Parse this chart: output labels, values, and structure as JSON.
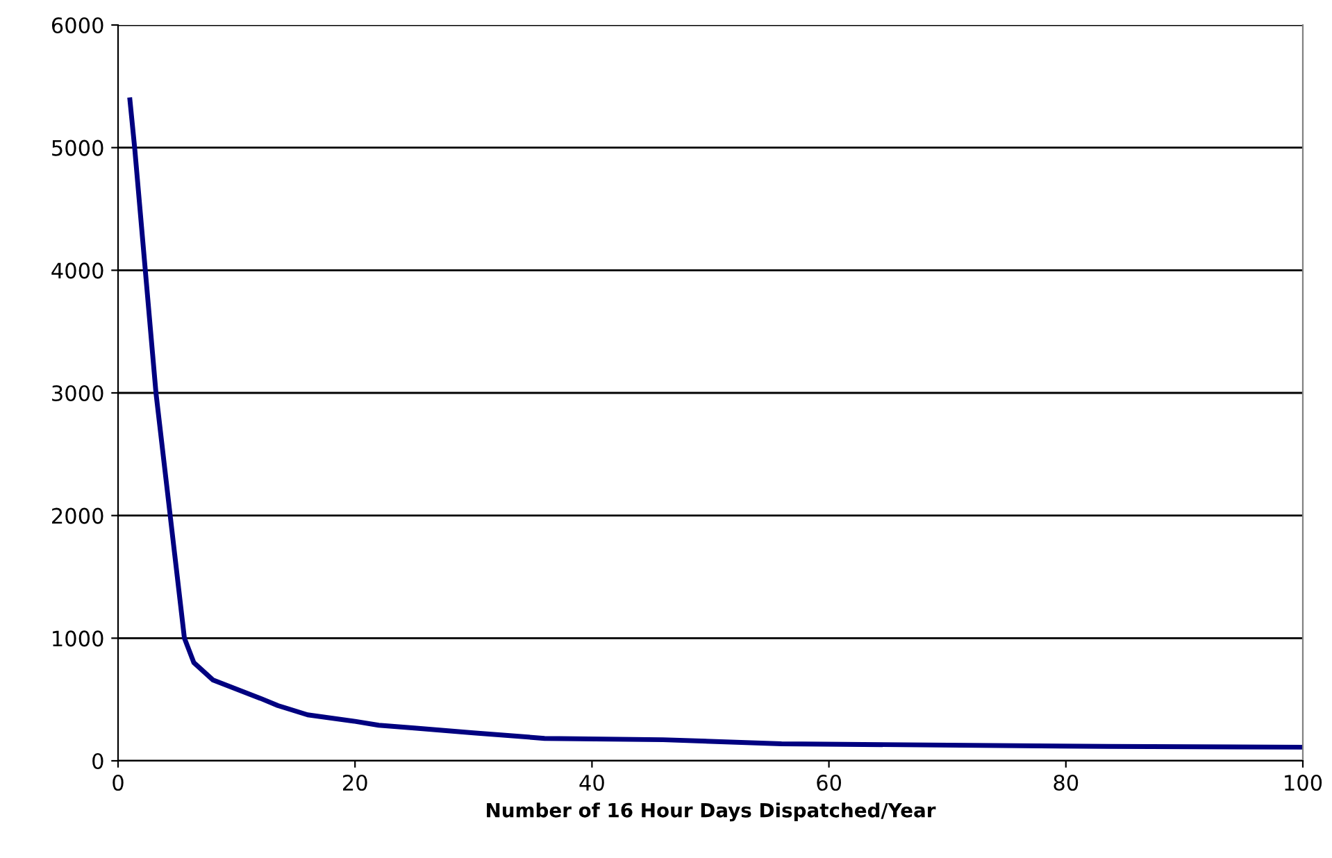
{
  "chart_data": {
    "type": "line",
    "xlabel": "Number of 16 Hour Days Dispatched/Year",
    "x": [
      1,
      1.4,
      2.3,
      3.2,
      4.4,
      5.6,
      6.4,
      8,
      12,
      13.5,
      16,
      20,
      22,
      25,
      30,
      36,
      46,
      56,
      83.6,
      100
    ],
    "series": [
      {
        "color": "#000080",
        "values": [
          5390,
          5000,
          4000,
          3000,
          2000,
          1000,
          800,
          660,
          510,
          450,
          375,
          322,
          290,
          267,
          228,
          183,
          172,
          139,
          117,
          111
        ]
      }
    ],
    "xlim": [
      0,
      100
    ],
    "xticks": [
      0,
      20,
      40,
      60,
      80,
      100
    ],
    "ylim": [
      0,
      6000
    ],
    "yticks": [
      0,
      1000,
      2000,
      3000,
      4000,
      5000,
      6000
    ],
    "grid": "y",
    "legend": false,
    "marker": "none",
    "line_style": "solid"
  }
}
